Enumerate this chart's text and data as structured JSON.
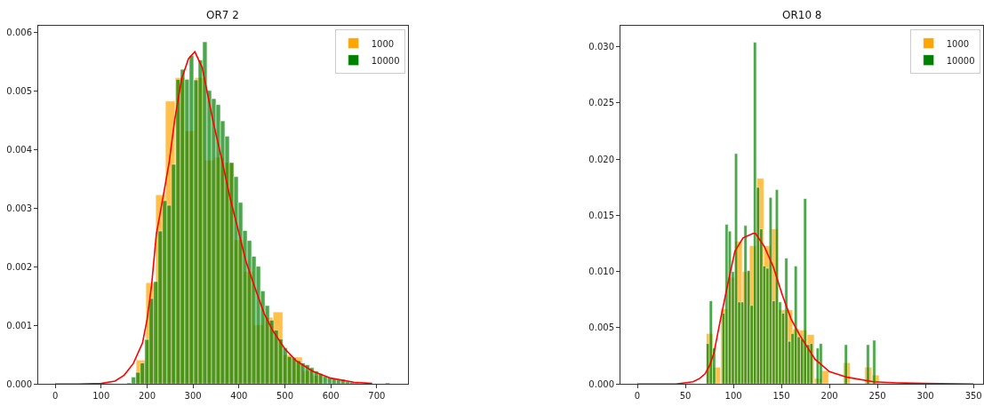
{
  "chart_data": [
    {
      "type": "histogram",
      "title": "OR7 2",
      "legend": "top right",
      "xlim": [
        -37,
        768
      ],
      "xticks": [
        0,
        100,
        200,
        300,
        400,
        500,
        600,
        700
      ],
      "ylim": [
        0,
        0.00612
      ],
      "yticks": [
        {
          "value": 0,
          "label": "0.000"
        },
        {
          "value": 0.001,
          "label": "0.001"
        },
        {
          "value": 0.002,
          "label": "0.002"
        },
        {
          "value": 0.003,
          "label": "0.003"
        },
        {
          "value": 0.004,
          "label": "0.004"
        },
        {
          "value": 0.005,
          "label": "0.005"
        },
        {
          "value": 0.006,
          "label": "0.006"
        }
      ],
      "series": [
        {
          "name": "1000",
          "color": "#ffa500",
          "bins": [
            176,
            197.3,
            218.6,
            239.9,
            261.2,
            282.5,
            303.8,
            325.1,
            346.4,
            367.7,
            389,
            410.3,
            431.6,
            452.9,
            474.2,
            495.5,
            516.8,
            538.1,
            559.4,
            580.7
          ],
          "values": [
            0.00041,
            0.00173,
            0.00323,
            0.00483,
            0.00523,
            0.00432,
            0.00523,
            0.00382,
            0.00387,
            0.00378,
            0.00246,
            0.00192,
            0.00101,
            0.00114,
            0.00123,
            0.0005,
            0.00046,
            0.00023,
            0.00015
          ]
        },
        {
          "name": "10000",
          "color": "#008000",
          "bins": [
            156,
            165.7,
            175.4,
            185.1,
            194.8,
            204.5,
            214.2,
            223.9,
            233.6,
            243.3,
            253,
            262.7,
            272.4,
            282.1,
            291.8,
            301.5,
            311.2,
            320.9,
            330.6,
            340.3,
            350,
            359.7,
            369.4,
            379.1,
            388.8,
            398.5,
            408.2,
            417.9,
            427.6,
            437.3,
            447,
            456.7,
            466.4,
            476.1,
            485.8,
            495.5,
            505.2,
            514.9,
            524.6,
            534.3,
            544,
            553.7,
            563.4,
            573.1,
            582.8,
            592.5,
            602.2,
            611.9,
            621.6,
            631.3,
            641,
            650.7,
            660.4,
            670.1,
            679.8,
            689.5,
            699.2,
            708.9,
            718.6,
            728.3,
            738
          ],
          "values": [
            2e-05,
            0.00012,
            0.0002,
            0.00036,
            0.00076,
            0.00146,
            0.00175,
            0.00261,
            0.00313,
            0.00305,
            0.00375,
            0.0052,
            0.00537,
            0.0052,
            0.00561,
            0.00519,
            0.00553,
            0.00584,
            0.00501,
            0.00487,
            0.00477,
            0.00449,
            0.00423,
            0.00378,
            0.00354,
            0.0031,
            0.00262,
            0.00245,
            0.00218,
            0.00201,
            0.00159,
            0.00134,
            0.00109,
            0.00092,
            0.00077,
            0.00062,
            0.00047,
            0.00045,
            0.0004,
            0.00036,
            0.00033,
            0.00028,
            0.00022,
            0.00018,
            0.00013,
            0.00011,
            9e-05,
            7e-05,
            8e-05,
            4e-05,
            3e-05,
            2e-05,
            0,
            0,
            0,
            0,
            0,
            0,
            2e-05,
            0
          ]
        },
        {
          "type": "line",
          "color": "#ff0000",
          "x": [
            0,
            50,
            100,
            130,
            150,
            170,
            190,
            200,
            210,
            220,
            235,
            248,
            260,
            275,
            290,
            304,
            320,
            344,
            363,
            380,
            396,
            415,
            434,
            455,
            473,
            500,
            524,
            560,
            600,
            650,
            690
          ],
          "values": [
            0,
            0,
            1e-05,
            5e-05,
            0.00015,
            0.00035,
            0.0007,
            0.0011,
            0.0017,
            0.00255,
            0.0032,
            0.00378,
            0.0045,
            0.0052,
            0.00555,
            0.00567,
            0.0054,
            0.00447,
            0.00382,
            0.0032,
            0.0027,
            0.0021,
            0.00166,
            0.0012,
            0.00092,
            0.0006,
            0.0004,
            0.00022,
            0.0001,
            3e-05,
            1e-05
          ]
        }
      ]
    },
    {
      "type": "histogram",
      "title": "OR10 8",
      "legend": "top right",
      "xlim": [
        -17.6,
        360
      ],
      "xticks": [
        0,
        50,
        100,
        150,
        200,
        250,
        300,
        350
      ],
      "ylim": [
        0,
        0.0319
      ],
      "yticks": [
        {
          "value": 0,
          "label": "0.000"
        },
        {
          "value": 0.005,
          "label": "0.005"
        },
        {
          "value": 0.01,
          "label": "0.010"
        },
        {
          "value": 0.015,
          "label": "0.015"
        },
        {
          "value": 0.02,
          "label": "0.020"
        },
        {
          "value": 0.025,
          "label": "0.025"
        },
        {
          "value": 0.03,
          "label": "0.030"
        }
      ],
      "series": [
        {
          "name": "1000",
          "color": "#ffa500",
          "bins": [
            71.7,
            79.2,
            86.7,
            94.2,
            101.7,
            109.2,
            116.7,
            124.2,
            131.7,
            139.2,
            146.7,
            154.2,
            161.7,
            169.2,
            176.7,
            184.2,
            191.7,
            199.2,
            206.7,
            214.2,
            221.7,
            229.2,
            236.7,
            244.2,
            251.7
          ],
          "values": [
            0.0045,
            0.0015,
            0.0067,
            0.0095,
            0.0127,
            0.01,
            0.0123,
            0.0183,
            0.0123,
            0.0138,
            0.0066,
            0.0066,
            0.0049,
            0.0048,
            0.0044,
            0.0005,
            0.0012,
            0,
            0,
            0.0019,
            0,
            0,
            0.0015,
            0.0008
          ]
        },
        {
          "name": "10000",
          "color": "#008000",
          "bins": [
            71.7,
            74.97,
            78.24,
            81.51,
            84.78,
            88.05,
            91.32,
            94.59,
            97.86,
            101.13,
            104.4,
            107.67,
            110.94,
            114.21,
            117.48,
            120.75,
            124.02,
            127.29,
            130.56,
            133.83,
            137.1,
            140.37,
            143.64,
            146.91,
            150.18,
            153.45,
            156.72,
            159.99,
            163.26,
            166.53,
            169.8,
            173.07,
            176.34,
            179.61,
            182.88,
            186.15,
            189.42,
            192.69,
            195.96,
            199.23,
            202.5,
            205.77,
            209.04,
            212.31,
            215.58,
            218.85,
            222.12,
            225.39,
            228.66,
            231.93,
            235.2,
            238.47,
            241.74,
            245.01,
            248.28,
            251.55
          ],
          "values": [
            0.0036,
            0.0074,
            0.0032,
            0,
            0,
            0.0063,
            0.0142,
            0.0136,
            0.01,
            0.0205,
            0.0073,
            0.0073,
            0.0141,
            0.0101,
            0.007,
            0.0304,
            0.0175,
            0.0138,
            0.0105,
            0.0103,
            0.0166,
            0.0074,
            0.0173,
            0.0073,
            0.0063,
            0.0112,
            0.0038,
            0.0045,
            0.0105,
            0.0042,
            0.004,
            0.0165,
            0.0035,
            0.0036,
            0,
            0.0032,
            0.0036,
            0,
            0,
            0,
            0,
            0,
            0,
            0,
            0.0035,
            0,
            0,
            0,
            0,
            0,
            0,
            0.0035,
            0,
            0.0039,
            0
          ]
        },
        {
          "type": "line",
          "color": "#ff0000",
          "x": [
            0,
            40,
            58,
            65,
            70.5,
            75,
            79.6,
            86,
            93.7,
            101.5,
            110,
            120.4,
            123,
            132.4,
            141.7,
            151,
            160,
            169.4,
            185,
            200,
            218.5,
            246,
            271,
            300,
            350
          ],
          "values": [
            0,
            0,
            0.0002,
            0.0005,
            0.0009,
            0.0016,
            0.0027,
            0.0055,
            0.0087,
            0.0118,
            0.013,
            0.0134,
            0.0134,
            0.0122,
            0.0104,
            0.0079,
            0.0058,
            0.0043,
            0.0022,
            0.0011,
            0.0006,
            0.0002,
            0.0001,
            5e-05,
            0
          ]
        }
      ]
    }
  ]
}
